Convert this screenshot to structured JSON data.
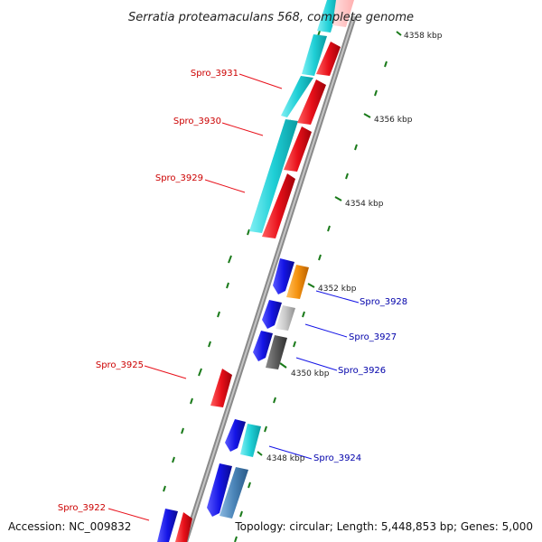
{
  "title": "Serratia proteamaculans 568, complete genome",
  "footer": {
    "accession": "Accession: NC_009832",
    "topology": "Topology: circular; Length: 5,448,853 bp; Genes: 5,000"
  },
  "ticks": [
    "4358 kbp",
    "4356 kbp",
    "4354 kbp",
    "4352 kbp",
    "4350 kbp",
    "4348 kbp"
  ],
  "labels": {
    "spro_3931": "Spro_3931",
    "spro_3930": "Spro_3930",
    "spro_3929": "Spro_3929",
    "spro_3925": "Spro_3925",
    "spro_3922": "Spro_3922",
    "spro_3928": "Spro_3928",
    "spro_3927": "Spro_3927",
    "spro_3926": "Spro_3926",
    "spro_3924": "Spro_3924"
  },
  "colors": {
    "red": "#e8101a",
    "blue": "#1414e6",
    "cyan": "#1fcfd6",
    "orange": "#f5920f",
    "lightgray": "#c8c8c8",
    "darkgray": "#5a5a5a",
    "steel": "#4a84b8",
    "tick": "#1a7a1a",
    "label_red": "#cc0000",
    "label_blue": "#0000aa"
  }
}
